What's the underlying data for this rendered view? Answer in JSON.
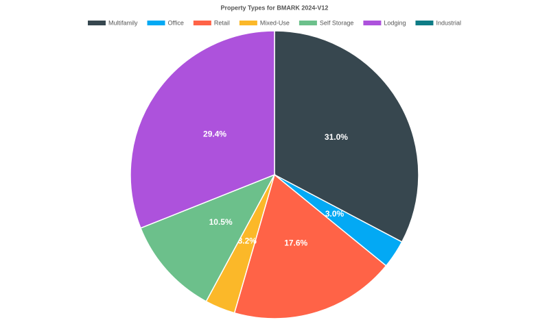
{
  "chart_data": {
    "type": "pie",
    "title": "Property Types for BMARK 2024-V12",
    "categories": [
      "Multifamily",
      "Office",
      "Retail",
      "Mixed-Use",
      "Self Storage",
      "Lodging",
      "Industrial"
    ],
    "values": [
      31.0,
      3.0,
      17.6,
      3.2,
      10.5,
      29.4,
      null
    ],
    "value_labels": [
      "31.0%",
      "3.0%",
      "17.6%",
      "3.2%",
      "10.5%",
      "29.4%",
      null
    ],
    "colors": [
      "#37474f",
      "#03a9f4",
      "#ff6347",
      "#fbb829",
      "#6cc08b",
      "#ad52dc",
      "#0e7c86"
    ],
    "legend": "top"
  }
}
